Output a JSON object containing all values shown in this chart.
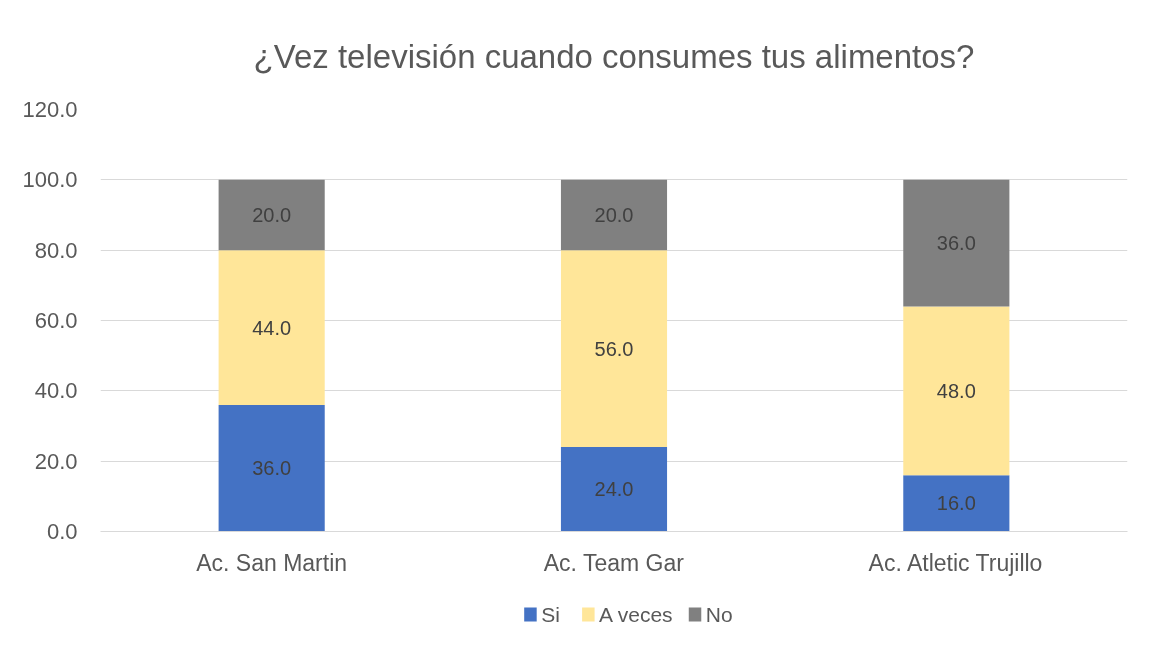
{
  "chart_data": {
    "type": "bar",
    "title": "¿Vez televisión cuando consumes tus alimentos?",
    "stacked": true,
    "categories": [
      "Ac. San Martin",
      "Ac. Team Gar",
      "Ac. Atletic Trujillo"
    ],
    "series": [
      {
        "name": "Si",
        "color": "#4472c4",
        "values": [
          36,
          24,
          16
        ],
        "value_labels": [
          "36.0",
          "24.0",
          "16.0"
        ]
      },
      {
        "name": "A veces",
        "color": "#ffe699",
        "values": [
          44,
          56,
          48
        ],
        "value_labels": [
          "44.0",
          "56.0",
          "48.0"
        ]
      },
      {
        "name": "No",
        "color": "#808080",
        "values": [
          20,
          20,
          36
        ],
        "value_labels": [
          "20.0",
          "20.0",
          "36.0"
        ]
      }
    ],
    "ylim": [
      0,
      120
    ],
    "yticks": [
      {
        "value": 0,
        "label": "0.0"
      },
      {
        "value": 20,
        "label": "20.0"
      },
      {
        "value": 40,
        "label": "40.0"
      },
      {
        "value": 60,
        "label": "60.0"
      },
      {
        "value": 80,
        "label": "80.0"
      },
      {
        "value": 100,
        "label": "100.0"
      },
      {
        "value": 120,
        "label": "120.0"
      }
    ],
    "grid": "y",
    "legend": "bottom"
  }
}
